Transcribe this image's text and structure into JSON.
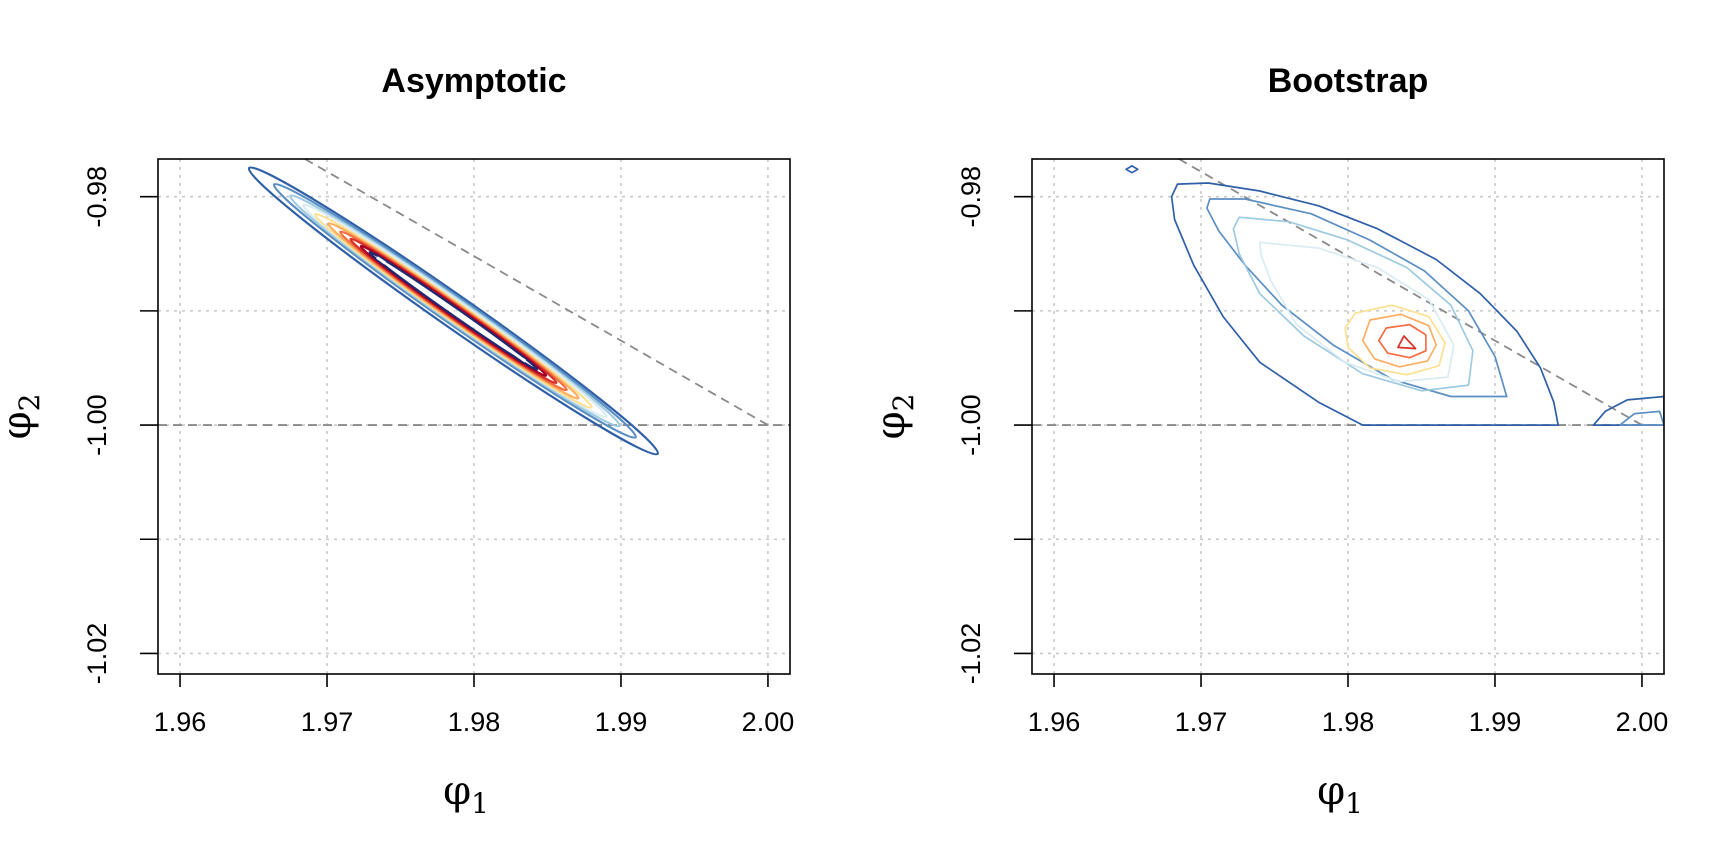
{
  "chart_data": [
    {
      "type": "contour",
      "title": "Asymptotic",
      "xlabel": "φ",
      "xlabel_sub": "1",
      "ylabel": "φ",
      "ylabel_sub": "2",
      "xlim": [
        1.9585,
        2.0015
      ],
      "ylim": [
        -1.0218,
        -0.9767
      ],
      "xticks": [
        "1.96",
        "1.97",
        "1.98",
        "1.99",
        "2.00"
      ],
      "yticks": [
        "-0.98",
        "-1.00",
        "-1.02"
      ],
      "grid": true,
      "reference_lines": [
        {
          "style": "dashed",
          "from": [
            1.9685,
            -0.9767
          ],
          "to": [
            2.0,
            -1.0
          ]
        },
        {
          "style": "dashed",
          "from": [
            1.9585,
            -1.0
          ],
          "to": [
            2.0015,
            -1.0
          ]
        }
      ],
      "contours": [
        {
          "color": "#2e5fa7",
          "center": [
            1.9786,
            -0.99
          ],
          "a": 0.0139,
          "b": 0.0009
        },
        {
          "color": "#5b8fc3",
          "center": [
            1.9787,
            -0.99
          ],
          "a": 0.0123,
          "b": 0.00075
        },
        {
          "color": "#9ecae1",
          "center": [
            1.9787,
            -0.99
          ],
          "a": 0.0112,
          "b": 0.00065
        },
        {
          "color": "#d8ecf2",
          "center": [
            1.9787,
            -0.99
          ],
          "a": 0.0103,
          "b": 0.00058
        },
        {
          "color": "#fee090",
          "center": [
            1.9786,
            -0.99
          ],
          "a": 0.0094,
          "b": 0.00052
        },
        {
          "color": "#fdae61",
          "center": [
            1.9786,
            -0.99
          ],
          "a": 0.0085,
          "b": 0.00046
        },
        {
          "color": "#f46d43",
          "center": [
            1.9786,
            -0.99
          ],
          "a": 0.0077,
          "b": 0.0004
        },
        {
          "color": "#d73027",
          "center": [
            1.9786,
            -0.99
          ],
          "a": 0.007,
          "b": 0.00035
        },
        {
          "color": "#a50026",
          "center": [
            1.9786,
            -0.99
          ],
          "a": 0.0063,
          "b": 0.00029
        },
        {
          "color": "#1f2a70",
          "center": [
            1.9786,
            -0.99
          ],
          "a": 0.0057,
          "b": 0.00022
        }
      ]
    },
    {
      "type": "contour",
      "title": "Bootstrap",
      "xlabel": "φ",
      "xlabel_sub": "1",
      "ylabel": "φ",
      "ylabel_sub": "2",
      "xlim": [
        1.9585,
        2.0015
      ],
      "ylim": [
        -1.0218,
        -0.9767
      ],
      "xticks": [
        "1.96",
        "1.97",
        "1.98",
        "1.99",
        "2.00"
      ],
      "yticks": [
        "-0.98",
        "-1.00",
        "-1.02"
      ],
      "grid": true,
      "reference_lines": [
        {
          "style": "dashed",
          "from": [
            1.9685,
            -0.9767
          ],
          "to": [
            2.0,
            -1.0
          ]
        },
        {
          "style": "dashed",
          "from": [
            1.9585,
            -1.0
          ],
          "to": [
            2.0015,
            -1.0
          ]
        }
      ],
      "contours": [
        {
          "color": "#2e5fa7",
          "points": [
            [
              1.9684,
              -0.9789
            ],
            [
              1.9705,
              -0.9788
            ],
            [
              1.974,
              -0.9795
            ],
            [
              1.978,
              -0.9808
            ],
            [
              1.982,
              -0.9828
            ],
            [
              1.986,
              -0.9855
            ],
            [
              1.989,
              -0.9885
            ],
            [
              1.9915,
              -0.9918
            ],
            [
              1.9931,
              -0.995
            ],
            [
              1.994,
              -0.998
            ],
            [
              1.9943,
              -1.0
            ],
            [
              1.981,
              -1.0
            ],
            [
              1.978,
              -0.998
            ],
            [
              1.974,
              -0.9945
            ],
            [
              1.9715,
              -0.9905
            ],
            [
              1.9695,
              -0.986
            ],
            [
              1.9682,
              -0.982
            ],
            [
              1.968,
              -0.98
            ]
          ]
        },
        {
          "color": "#2e5fa7",
          "points": [
            [
              1.9967,
              -1.0
            ],
            [
              1.9975,
              -0.9988
            ],
            [
              1.999,
              -0.9978
            ],
            [
              2.0015,
              -0.9975
            ],
            [
              2.0015,
              -1.0
            ]
          ]
        },
        {
          "color": "#2e5fa7",
          "points": [
            [
              1.9653,
              -0.9773
            ],
            [
              1.9657,
              -0.9776
            ],
            [
              1.9653,
              -0.9779
            ],
            [
              1.9649,
              -0.9776
            ]
          ]
        },
        {
          "color": "#5b8fc3",
          "points": [
            [
              1.9706,
              -0.9802
            ],
            [
              1.973,
              -0.9802
            ],
            [
              1.9775,
              -0.9815
            ],
            [
              1.9815,
              -0.9838
            ],
            [
              1.9852,
              -0.9865
            ],
            [
              1.9882,
              -0.99
            ],
            [
              1.99,
              -0.994
            ],
            [
              1.9908,
              -0.9975
            ],
            [
              1.987,
              -0.9975
            ],
            [
              1.983,
              -0.996
            ],
            [
              1.979,
              -0.993
            ],
            [
              1.9755,
              -0.9895
            ],
            [
              1.973,
              -0.986
            ],
            [
              1.9712,
              -0.983
            ],
            [
              1.9704,
              -0.981
            ]
          ]
        },
        {
          "color": "#5b8fc3",
          "points": [
            [
              1.9985,
              -1.0
            ],
            [
              1.9995,
              -0.999
            ],
            [
              2.0012,
              -0.9988
            ],
            [
              2.0015,
              -1.0
            ]
          ]
        },
        {
          "color": "#9ecae1",
          "points": [
            [
              1.9726,
              -0.9818
            ],
            [
              1.976,
              -0.9822
            ],
            [
              1.98,
              -0.9838
            ],
            [
              1.984,
              -0.9862
            ],
            [
              1.987,
              -0.9895
            ],
            [
              1.9885,
              -0.9935
            ],
            [
              1.9882,
              -0.9965
            ],
            [
              1.985,
              -0.997
            ],
            [
              1.981,
              -0.9955
            ],
            [
              1.977,
              -0.9922
            ],
            [
              1.974,
              -0.9885
            ],
            [
              1.9726,
              -0.985
            ],
            [
              1.9722,
              -0.9828
            ]
          ]
        },
        {
          "color": "#d8ecf2",
          "points": [
            [
              1.974,
              -0.984
            ],
            [
              1.978,
              -0.9845
            ],
            [
              1.982,
              -0.9862
            ],
            [
              1.9855,
              -0.989
            ],
            [
              1.9872,
              -0.993
            ],
            [
              1.9868,
              -0.9958
            ],
            [
              1.9835,
              -0.9962
            ],
            [
              1.9798,
              -0.9945
            ],
            [
              1.9765,
              -0.9912
            ],
            [
              1.9748,
              -0.9875
            ],
            [
              1.9741,
              -0.9852
            ]
          ]
        },
        {
          "color": "#fee090",
          "points": [
            [
              1.9805,
              -0.9902
            ],
            [
              1.983,
              -0.9895
            ],
            [
              1.9855,
              -0.9905
            ],
            [
              1.9866,
              -0.9928
            ],
            [
              1.9862,
              -0.9948
            ],
            [
              1.984,
              -0.9956
            ],
            [
              1.9815,
              -0.995
            ],
            [
              1.98,
              -0.9932
            ],
            [
              1.9798,
              -0.9915
            ]
          ]
        },
        {
          "color": "#fdae61",
          "points": [
            [
              1.9815,
              -0.9908
            ],
            [
              1.9836,
              -0.9903
            ],
            [
              1.9855,
              -0.9913
            ],
            [
              1.986,
              -0.993
            ],
            [
              1.9854,
              -0.9944
            ],
            [
              1.9835,
              -0.9949
            ],
            [
              1.9818,
              -0.9942
            ],
            [
              1.981,
              -0.9926
            ]
          ]
        },
        {
          "color": "#f46d43",
          "points": [
            [
              1.9826,
              -0.9915
            ],
            [
              1.9842,
              -0.9912
            ],
            [
              1.9853,
              -0.9921
            ],
            [
              1.9853,
              -0.9935
            ],
            [
              1.9842,
              -0.9941
            ],
            [
              1.9827,
              -0.9937
            ],
            [
              1.9821,
              -0.9926
            ]
          ]
        },
        {
          "color": "#d73027",
          "points": [
            [
              1.9838,
              -0.9922
            ],
            [
              1.9846,
              -0.9933
            ],
            [
              1.9834,
              -0.9932
            ]
          ]
        }
      ]
    }
  ]
}
